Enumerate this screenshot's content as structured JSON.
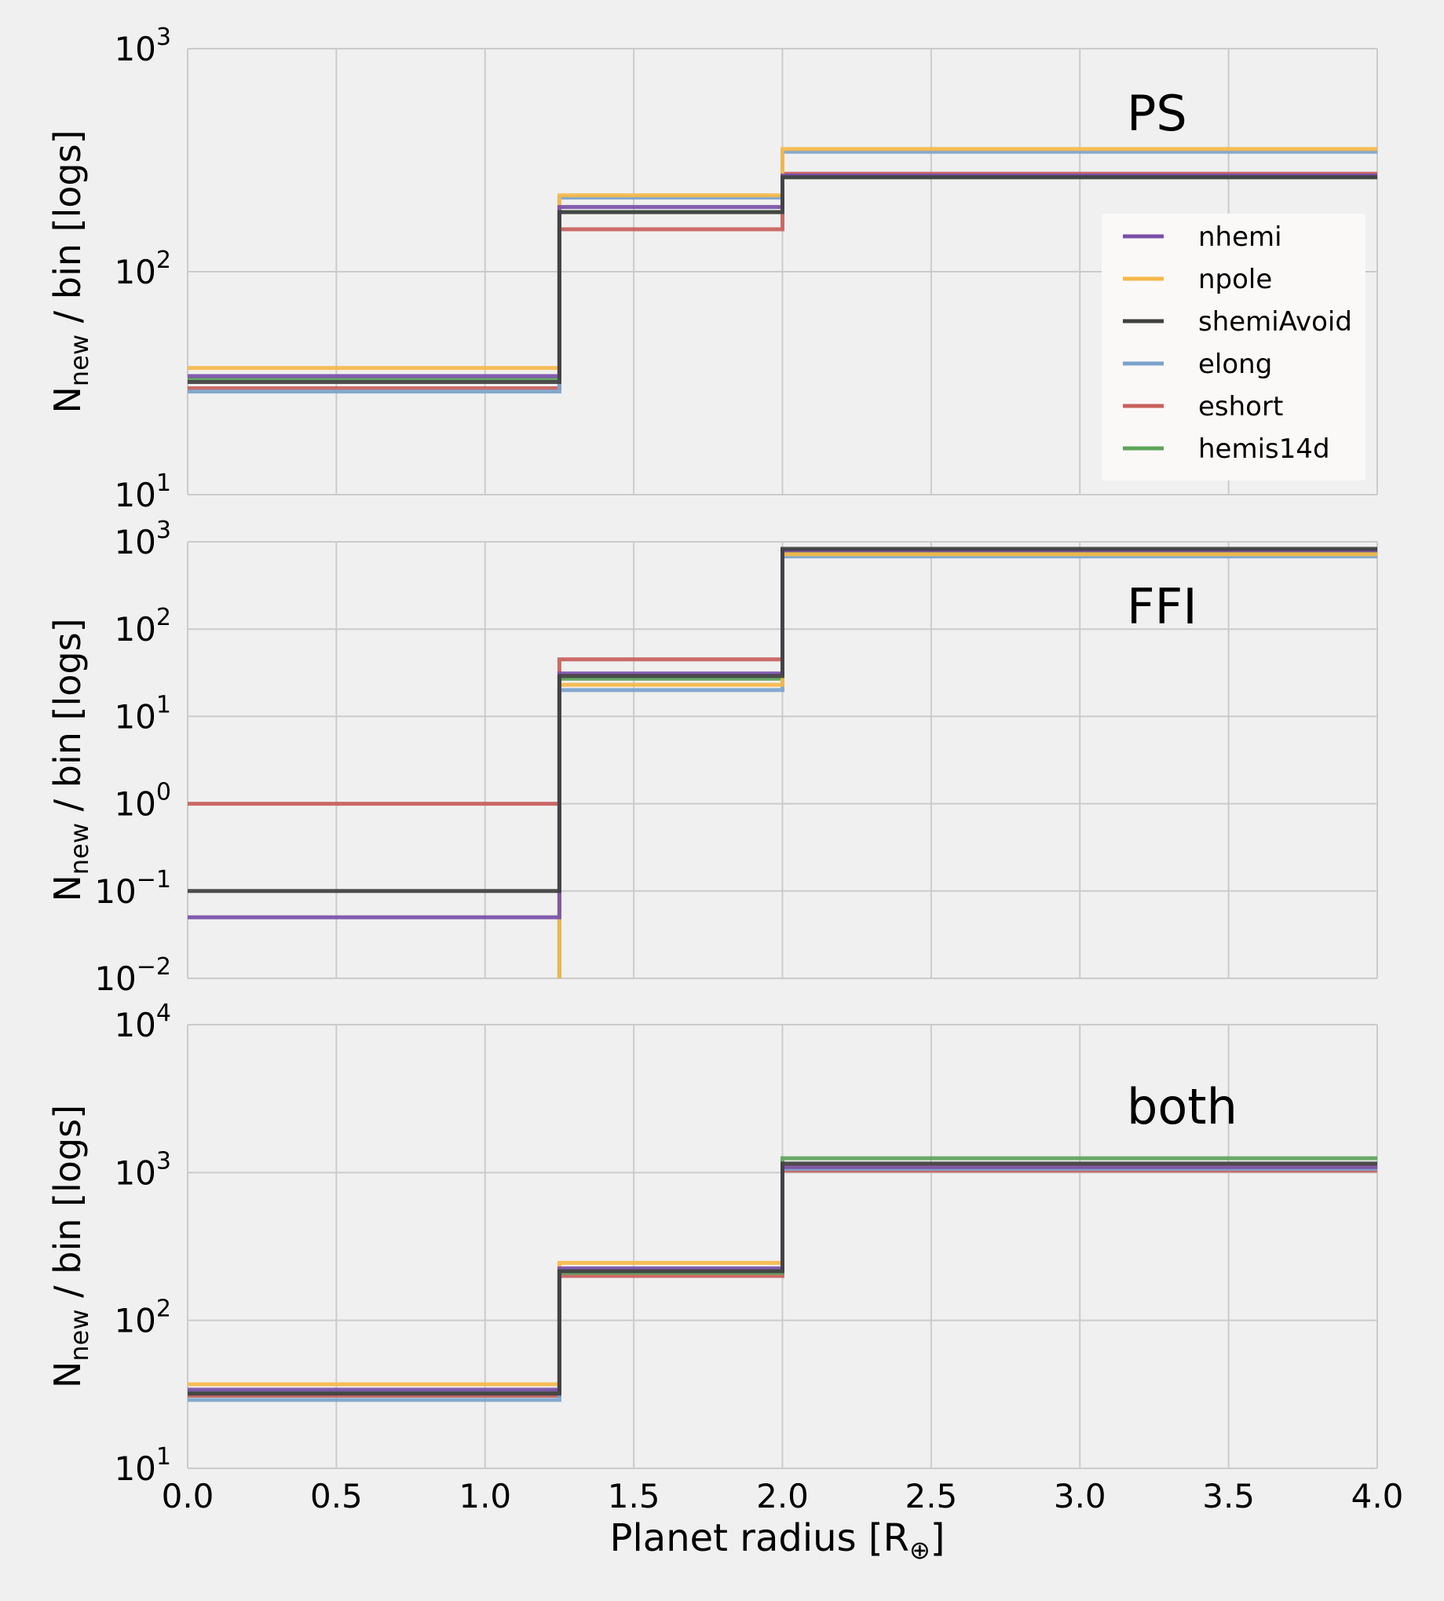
{
  "chart_data": {
    "type": "line",
    "step": true,
    "background": "#f0f0f0",
    "grid": true,
    "sharex": true,
    "xlabel": "Planet radius [R⊕]",
    "xlim": [
      0.0,
      4.0
    ],
    "xticks": [
      "0.0",
      "0.5",
      "1.0",
      "1.5",
      "2.0",
      "2.5",
      "3.0",
      "3.5",
      "4.0"
    ],
    "bin_edges": [
      0.0,
      1.25,
      2.0,
      4.0
    ],
    "series_styles": [
      {
        "name": "nhemi",
        "color": "#7a4fa8"
      },
      {
        "name": "npole",
        "color": "#f6b84a"
      },
      {
        "name": "shemiAvoid",
        "color": "#404040"
      },
      {
        "name": "elong",
        "color": "#7ba3cc"
      },
      {
        "name": "eshort",
        "color": "#c8605c"
      },
      {
        "name": "hemis14d",
        "color": "#5da45a"
      }
    ],
    "legend": {
      "placement": "upper right",
      "entries": [
        "nhemi",
        "npole",
        "shemiAvoid",
        "elong",
        "eshort",
        "hemis14d"
      ]
    },
    "panels": [
      {
        "title": "PS",
        "ylabel_main": "N",
        "ylabel_sub": "new",
        "ylabel_rest": " / bin [logs]",
        "yscale": "log",
        "ylim": [
          10,
          1000
        ],
        "yticks": [
          {
            "base": "10",
            "exp": "1"
          },
          {
            "base": "10",
            "exp": "2"
          },
          {
            "base": "10",
            "exp": "3"
          }
        ],
        "show_legend": true,
        "series": [
          {
            "name": "eshort",
            "values": [
              30,
              155,
              275
            ]
          },
          {
            "name": "elong",
            "values": [
              29,
              215,
              345
            ]
          },
          {
            "name": "hemis14d",
            "values": [
              33,
              185,
              265
            ]
          },
          {
            "name": "npole",
            "values": [
              37,
              220,
              355
            ]
          },
          {
            "name": "nhemi",
            "values": [
              34,
              195,
              270
            ]
          },
          {
            "name": "shemiAvoid",
            "values": [
              32,
              185,
              265
            ]
          }
        ]
      },
      {
        "title": "FFI",
        "ylabel_main": "N",
        "ylabel_sub": "new",
        "ylabel_rest": " / bin [logs]",
        "yscale": "log",
        "ylim": [
          0.01,
          1000
        ],
        "yticks": [
          {
            "base": "10",
            "exp": "−2"
          },
          {
            "base": "10",
            "exp": "−1"
          },
          {
            "base": "10",
            "exp": "0"
          },
          {
            "base": "10",
            "exp": "1"
          },
          {
            "base": "10",
            "exp": "2"
          },
          {
            "base": "10",
            "exp": "3"
          }
        ],
        "show_legend": false,
        "series": [
          {
            "name": "eshort",
            "values": [
              1.0,
              45,
              760
            ]
          },
          {
            "name": "elong",
            "values": [
              null,
              20,
              680
            ]
          },
          {
            "name": "hemis14d",
            "values": [
              null,
              27,
              730
            ]
          },
          {
            "name": "npole",
            "values": [
              null,
              23,
              720
            ]
          },
          {
            "name": "nhemi",
            "values": [
              0.05,
              31,
              800
            ]
          },
          {
            "name": "shemiAvoid",
            "values": [
              0.1,
              29,
              830
            ]
          }
        ]
      },
      {
        "title": "both",
        "ylabel_main": "N",
        "ylabel_sub": "new",
        "ylabel_rest": " / bin [logs]",
        "yscale": "log",
        "ylim": [
          10,
          10000
        ],
        "yticks": [
          {
            "base": "10",
            "exp": "1"
          },
          {
            "base": "10",
            "exp": "2"
          },
          {
            "base": "10",
            "exp": "3"
          },
          {
            "base": "10",
            "exp": "4"
          }
        ],
        "show_legend": false,
        "series": [
          {
            "name": "eshort",
            "values": [
              31,
              200,
              1030
            ]
          },
          {
            "name": "elong",
            "values": [
              29,
              215,
              1060
            ]
          },
          {
            "name": "hemis14d",
            "values": [
              33,
              210,
              1250
            ]
          },
          {
            "name": "npole",
            "values": [
              37,
              245,
              1110
            ]
          },
          {
            "name": "nhemi",
            "values": [
              34,
              225,
              1090
            ]
          },
          {
            "name": "shemiAvoid",
            "values": [
              32,
              215,
              1150
            ]
          }
        ]
      }
    ]
  }
}
